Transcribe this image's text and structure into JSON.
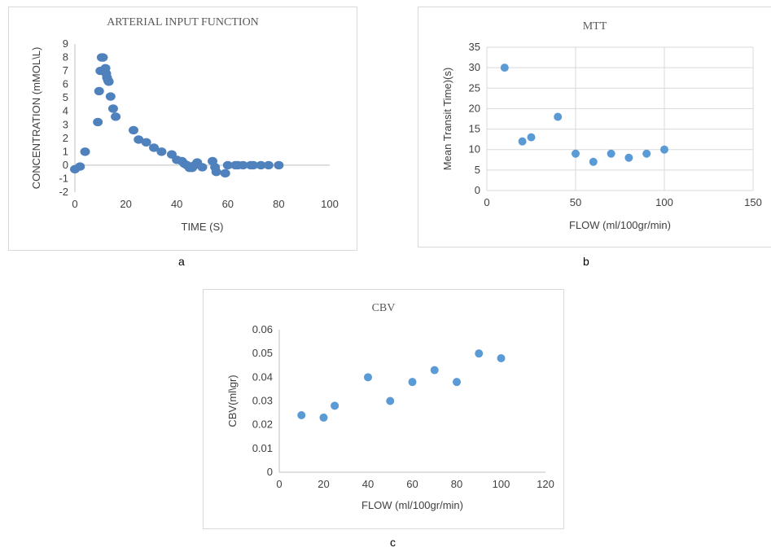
{
  "captions": {
    "a": "a",
    "b": "b",
    "c": "c"
  },
  "chart_data": [
    {
      "type": "scatter",
      "title": "ARTERIAL INPUT FUNCTION",
      "xlabel": "TIME (S)",
      "ylabel": "CONCENTRATION (mMOL\\L)",
      "xlim": [
        0,
        100
      ],
      "ylim": [
        -2,
        9
      ],
      "xticks": [
        0,
        20,
        40,
        60,
        80,
        100
      ],
      "yticks": [
        -2,
        -1,
        0,
        1,
        2,
        3,
        4,
        5,
        6,
        7,
        8,
        9
      ],
      "xtick_labels": [
        "0",
        "20",
        "40",
        "60",
        "80",
        "100"
      ],
      "ytick_labels": [
        "-2",
        "-1",
        "0",
        "1",
        "2",
        "3",
        "4",
        "5",
        "6",
        "7",
        "8",
        "9"
      ],
      "grid": "none",
      "color": "#4f81bd",
      "x": [
        0,
        2,
        4,
        9,
        9.5,
        10,
        10.5,
        11,
        12,
        12.3,
        12.6,
        13,
        13.3,
        14,
        15,
        16,
        23,
        25,
        28,
        31,
        34,
        38,
        40,
        42,
        43,
        44,
        45,
        46,
        47,
        48,
        50,
        54,
        55,
        55.5,
        59,
        60,
        63,
        64,
        66,
        69,
        70,
        73,
        76,
        80
      ],
      "y": [
        -0.3,
        -0.1,
        1.0,
        3.2,
        5.5,
        7.0,
        8.0,
        8.0,
        7.2,
        6.8,
        6.5,
        6.3,
        6.2,
        5.1,
        4.2,
        3.6,
        2.6,
        1.9,
        1.7,
        1.3,
        1.0,
        0.8,
        0.4,
        0.3,
        0.1,
        0.0,
        -0.2,
        -0.2,
        0.0,
        0.2,
        -0.15,
        0.3,
        -0.15,
        -0.5,
        -0.6,
        0.0,
        0.0,
        0.0,
        0.0,
        0.0,
        0.0,
        0.0,
        0.0,
        0.0
      ]
    },
    {
      "type": "scatter",
      "title": "MTT",
      "xlabel": "FLOW (ml/100gr/min)",
      "ylabel": "Mean Transit Time)(s)",
      "xlim": [
        0,
        150
      ],
      "ylim": [
        0,
        35
      ],
      "xticks": [
        0,
        50,
        100,
        150
      ],
      "yticks": [
        0,
        5,
        10,
        15,
        20,
        25,
        30,
        35
      ],
      "xtick_labels": [
        "0",
        "50",
        "100",
        "150"
      ],
      "ytick_labels": [
        "0",
        "5",
        "10",
        "15",
        "20",
        "25",
        "30",
        "35"
      ],
      "grid": "both",
      "color": "#5b9bd5",
      "x": [
        10,
        20,
        25,
        40,
        50,
        60,
        70,
        80,
        90,
        100
      ],
      "y": [
        30,
        12,
        13,
        18,
        9,
        7,
        9,
        8,
        9,
        10
      ]
    },
    {
      "type": "scatter",
      "title": "CBV",
      "xlabel": "FLOW (ml/100gr/min)",
      "ylabel": "CBV(ml\\gr)",
      "xlim": [
        0,
        120
      ],
      "ylim": [
        0,
        0.06
      ],
      "xticks": [
        0,
        20,
        40,
        60,
        80,
        100,
        120
      ],
      "yticks": [
        0,
        0.01,
        0.02,
        0.03,
        0.04,
        0.05,
        0.06
      ],
      "xtick_labels": [
        "0",
        "20",
        "40",
        "60",
        "80",
        "100",
        "120"
      ],
      "ytick_labels": [
        "0",
        "0.01",
        "0.02",
        "0.03",
        "0.04",
        "0.05",
        "0.06"
      ],
      "grid": "none",
      "color": "#5b9bd5",
      "x": [
        10,
        20,
        25,
        40,
        50,
        60,
        70,
        80,
        90,
        100
      ],
      "y": [
        0.024,
        0.023,
        0.028,
        0.04,
        0.03,
        0.038,
        0.043,
        0.038,
        0.05,
        0.048
      ]
    }
  ]
}
